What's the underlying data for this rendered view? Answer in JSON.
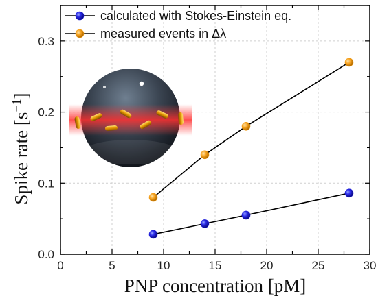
{
  "chart_data": {
    "type": "line",
    "xlabel": "PNP concentration [pM]",
    "ylabel": "Spike rate [s",
    "ylabel_sup": "−1",
    "ylabel_end": "]",
    "xlim": [
      0,
      30
    ],
    "ylim": [
      0,
      0.35
    ],
    "xticks": [
      "0",
      "5",
      "10",
      "15",
      "20",
      "25",
      "30"
    ],
    "yticks": [
      "0.0",
      "0.1",
      "0.2",
      "0.3"
    ],
    "grid": true,
    "legend_position": "top-left",
    "series": [
      {
        "name": "calculated with Stokes-Einstein eq.",
        "color": "#1a1adb",
        "x": [
          9,
          14,
          18,
          28
        ],
        "y": [
          0.028,
          0.043,
          0.055,
          0.086
        ]
      },
      {
        "name": "measured events in Δλ",
        "color": "#f5a01c",
        "x": [
          9,
          14,
          18,
          28
        ],
        "y": [
          0.08,
          0.14,
          0.18,
          0.27
        ]
      }
    ]
  }
}
